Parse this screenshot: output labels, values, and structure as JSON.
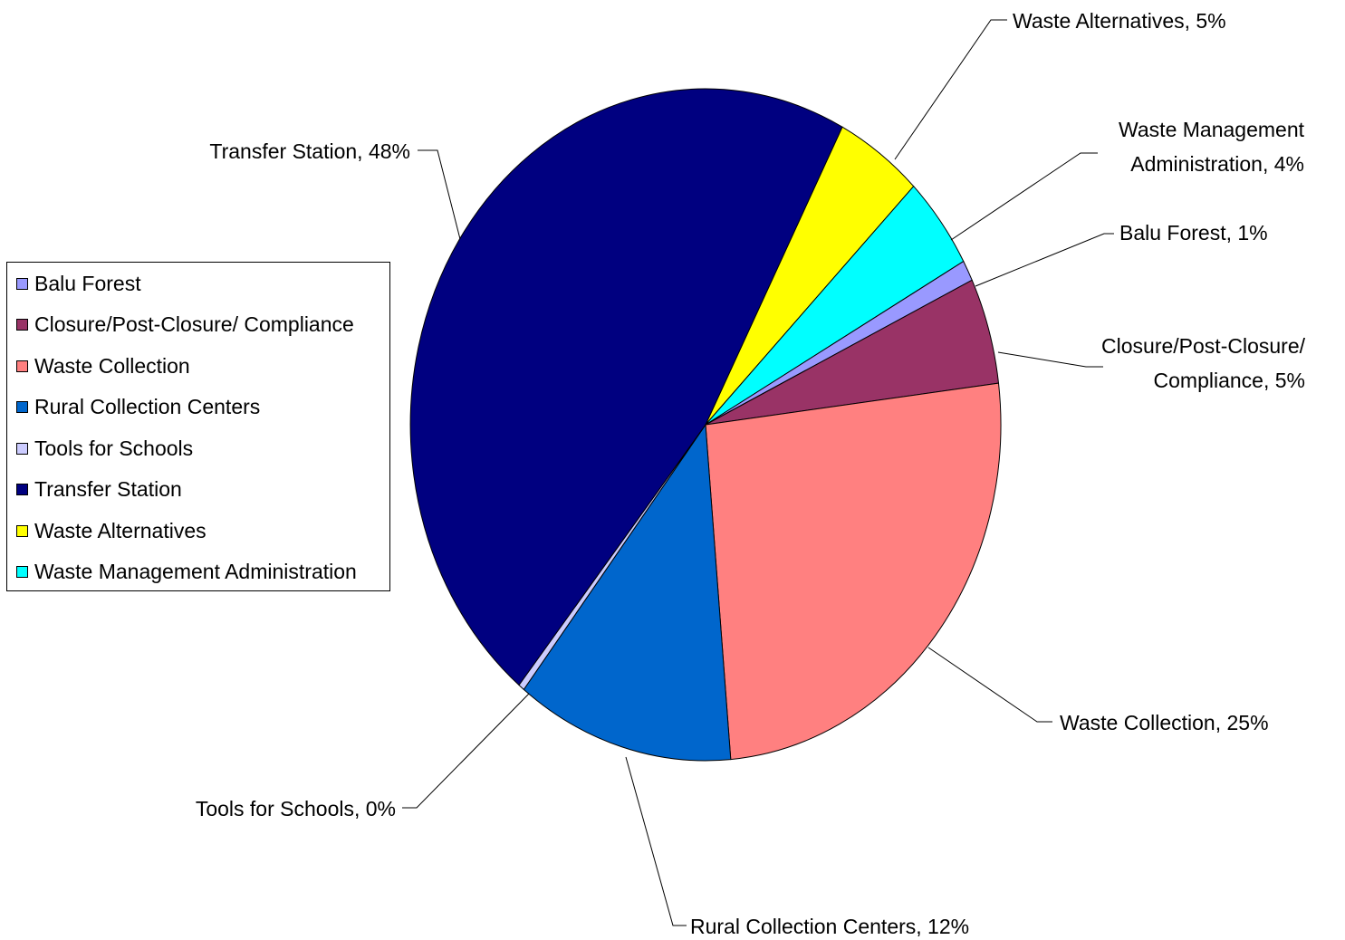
{
  "chart_data": {
    "type": "pie",
    "slices": [
      {
        "label": "Balu Forest",
        "value": 1,
        "color": "#9999FF",
        "data_label": [
          "Balu Forest, 1%"
        ]
      },
      {
        "label": "Closure/Post-Closure/ Compliance",
        "value": 5,
        "color": "#993366",
        "data_label": [
          "Closure/Post-Closure/",
          "Compliance, 5%"
        ]
      },
      {
        "label": "Waste Collection",
        "value": 25,
        "color": "#FF8080",
        "data_label": [
          "Waste Collection, 25%"
        ]
      },
      {
        "label": "Rural Collection Centers",
        "value": 12,
        "color": "#0066CC",
        "data_label": [
          "Rural Collection Centers, 12%"
        ]
      },
      {
        "label": "Tools for Schools",
        "value": 0,
        "color": "#CCCCFF",
        "data_label": [
          "Tools for Schools, 0%"
        ]
      },
      {
        "label": "Transfer Station",
        "value": 48,
        "color": "#000080",
        "data_label": [
          "Transfer Station, 48%"
        ]
      },
      {
        "label": "Waste Alternatives",
        "value": 5,
        "color": "#FFFF00",
        "data_label": [
          "Waste Alternatives, 5%"
        ]
      },
      {
        "label": "Waste Management Administration",
        "value": 4,
        "color": "#00FFFF",
        "data_label": [
          "Waste Management",
          "Administration, 4%"
        ]
      }
    ],
    "legend": {
      "position": "left",
      "entries": [
        "Balu Forest",
        "Closure/Post-Closure/ Compliance",
        "Waste Collection",
        "Rural Collection Centers",
        "Tools for Schools",
        "Transfer Station",
        "Waste Alternatives",
        "Waste Management Administration"
      ]
    }
  }
}
